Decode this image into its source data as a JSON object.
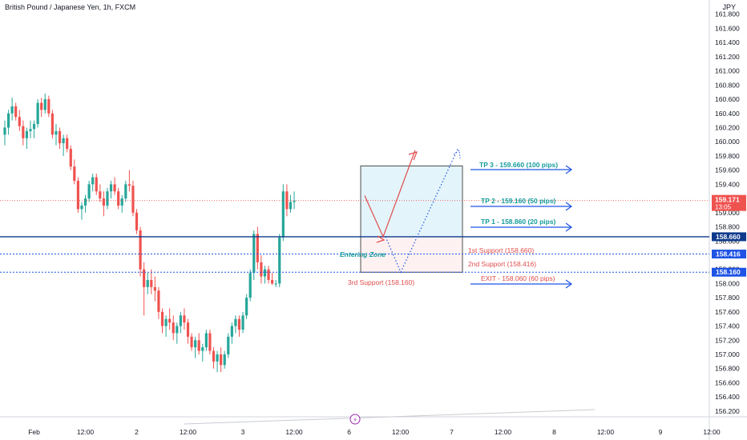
{
  "title": "British Pound / Japanese Yen, 1h, FXCM",
  "currency": "JPY",
  "colors": {
    "bull": "#26a69a",
    "bear": "#ef5350",
    "navy": "#0d3a8c",
    "blue": "#1e53e5",
    "teal": "#159b9b",
    "red": "#e04b4b",
    "zone": "#e3f4fb"
  },
  "chart_data": {
    "type": "candlestick",
    "title": "British Pound / Japanese Yen, 1h, FXCM",
    "ylabel": "JPY",
    "ylim": [
      156.12,
      162.0
    ],
    "y_ticks": [
      "161.800",
      "161.600",
      "161.400",
      "161.200",
      "161.000",
      "160.800",
      "160.600",
      "160.400",
      "160.200",
      "160.000",
      "159.800",
      "159.600",
      "159.400",
      "159.200",
      "159.000",
      "158.800",
      "158.600",
      "158.400",
      "158.200",
      "158.000",
      "157.800",
      "157.600",
      "157.400",
      "157.200",
      "157.000",
      "156.800",
      "156.600",
      "156.400",
      "156.200"
    ],
    "x_tick_labels": [
      "Feb",
      "12:00",
      "2",
      "12:00",
      "3",
      "12:00",
      "6",
      "12:00",
      "7",
      "12:00",
      "8",
      "12:00",
      "9",
      "12:00"
    ],
    "x_tick_index": [
      8,
      22,
      36,
      50,
      65,
      79,
      94,
      108,
      122,
      136,
      150,
      164,
      179,
      193
    ],
    "candles": [
      [
        160.1,
        160.3,
        159.95,
        160.2
      ],
      [
        160.2,
        160.45,
        160.1,
        160.4
      ],
      [
        160.4,
        160.62,
        160.3,
        160.5
      ],
      [
        160.5,
        160.55,
        160.3,
        160.35
      ],
      [
        160.35,
        160.45,
        160.15,
        160.22
      ],
      [
        160.22,
        160.3,
        159.95,
        160.05
      ],
      [
        160.05,
        160.2,
        159.9,
        160.15
      ],
      [
        160.15,
        160.3,
        160.05,
        160.18
      ],
      [
        160.18,
        160.3,
        160.05,
        160.25
      ],
      [
        160.25,
        160.6,
        160.2,
        160.55
      ],
      [
        160.55,
        160.62,
        160.35,
        160.45
      ],
      [
        160.45,
        160.68,
        160.4,
        160.6
      ],
      [
        160.6,
        160.65,
        160.35,
        160.4
      ],
      [
        160.4,
        160.45,
        160.05,
        160.1
      ],
      [
        160.1,
        160.25,
        159.95,
        160.15
      ],
      [
        160.15,
        160.2,
        159.9,
        159.98
      ],
      [
        159.98,
        160.1,
        159.8,
        160.05
      ],
      [
        160.05,
        160.1,
        159.85,
        159.9
      ],
      [
        159.9,
        159.95,
        159.6,
        159.65
      ],
      [
        159.65,
        159.75,
        159.4,
        159.45
      ],
      [
        159.45,
        159.5,
        159.0,
        159.05
      ],
      [
        159.05,
        159.15,
        158.9,
        159.1
      ],
      [
        159.1,
        159.25,
        159.0,
        159.2
      ],
      [
        159.2,
        159.45,
        159.15,
        159.4
      ],
      [
        159.4,
        159.55,
        159.3,
        159.5
      ],
      [
        159.5,
        159.55,
        159.25,
        159.3
      ],
      [
        159.3,
        159.4,
        159.15,
        159.2
      ],
      [
        159.2,
        159.3,
        158.95,
        159.1
      ],
      [
        159.1,
        159.35,
        159.05,
        159.3
      ],
      [
        159.3,
        159.45,
        159.2,
        159.4
      ],
      [
        159.4,
        159.5,
        159.25,
        159.3
      ],
      [
        159.3,
        159.35,
        159.05,
        159.1
      ],
      [
        159.1,
        159.25,
        159.0,
        159.2
      ],
      [
        159.2,
        159.45,
        159.15,
        159.4
      ],
      [
        159.4,
        159.6,
        159.3,
        159.38
      ],
      [
        159.38,
        159.45,
        158.95,
        159.0
      ],
      [
        159.0,
        159.05,
        158.7,
        158.75
      ],
      [
        158.75,
        158.8,
        158.1,
        158.2
      ],
      [
        158.2,
        158.3,
        157.55,
        157.95
      ],
      [
        157.95,
        158.15,
        157.85,
        158.05
      ],
      [
        158.05,
        158.2,
        157.85,
        157.95
      ],
      [
        157.95,
        158.1,
        157.75,
        157.9
      ],
      [
        157.9,
        157.95,
        157.5,
        157.6
      ],
      [
        157.6,
        157.65,
        157.3,
        157.4
      ],
      [
        157.4,
        157.55,
        157.25,
        157.5
      ],
      [
        157.5,
        157.65,
        157.35,
        157.45
      ],
      [
        157.45,
        157.55,
        157.2,
        157.3
      ],
      [
        157.3,
        157.45,
        157.15,
        157.4
      ],
      [
        157.4,
        157.6,
        157.3,
        157.55
      ],
      [
        157.55,
        157.65,
        157.35,
        157.45
      ],
      [
        157.45,
        157.5,
        157.15,
        157.25
      ],
      [
        157.25,
        157.3,
        157.05,
        157.1
      ],
      [
        157.1,
        157.25,
        156.95,
        157.2
      ],
      [
        157.2,
        157.3,
        157.0,
        157.05
      ],
      [
        157.05,
        157.15,
        156.9,
        157.1
      ],
      [
        157.1,
        157.35,
        157.05,
        157.3
      ],
      [
        157.3,
        157.35,
        157.0,
        157.05
      ],
      [
        157.05,
        157.1,
        156.8,
        156.9
      ],
      [
        156.9,
        157.05,
        156.75,
        157.0
      ],
      [
        157.0,
        157.1,
        156.75,
        156.85
      ],
      [
        156.85,
        157.05,
        156.8,
        157.0
      ],
      [
        157.0,
        157.3,
        156.95,
        157.25
      ],
      [
        157.25,
        157.45,
        157.15,
        157.4
      ],
      [
        157.4,
        157.55,
        157.3,
        157.5
      ],
      [
        157.5,
        157.55,
        157.25,
        157.35
      ],
      [
        157.35,
        157.6,
        157.3,
        157.55
      ],
      [
        157.55,
        157.85,
        157.5,
        157.8
      ],
      [
        157.8,
        158.2,
        157.75,
        158.15
      ],
      [
        158.15,
        158.75,
        158.05,
        158.7
      ],
      [
        158.7,
        158.8,
        158.2,
        158.3
      ],
      [
        158.3,
        158.4,
        158.0,
        158.1
      ],
      [
        158.1,
        158.25,
        158.0,
        158.2
      ],
      [
        158.2,
        158.25,
        158.0,
        158.05
      ],
      [
        158.05,
        158.15,
        157.98,
        158.0
      ],
      [
        158.0,
        158.05,
        157.95,
        158.0
      ],
      [
        158.0,
        158.7,
        157.95,
        158.65
      ],
      [
        158.65,
        159.4,
        158.6,
        159.3
      ],
      [
        159.3,
        159.4,
        158.95,
        159.05
      ],
      [
        159.05,
        159.25,
        159.0,
        159.15
      ],
      [
        159.15,
        159.3,
        159.05,
        159.17
      ]
    ],
    "last_price": "159.171",
    "countdown": "13:05",
    "horizontal_lines": [
      {
        "label": "158.660",
        "value": 158.66,
        "style": "solid"
      },
      {
        "label": "158.416",
        "value": 158.416,
        "style": "dotted"
      },
      {
        "label": "158.160",
        "value": 158.16,
        "style": "dotted"
      }
    ],
    "annotations": {
      "tp3": "TP 3 - 159.660 (100 pips)",
      "tp2": "TP 2 - 159.160 (50 pips)",
      "tp1": "TP 1 - 158.860 (20 pips)",
      "exit": "EXIT - 158.060 (60 pips)",
      "support1": "1st Support (158.660)",
      "support2": "2nd Support (158.416)",
      "support3": "3rd Support (158.160)",
      "entering": "Entering Zone"
    },
    "grid": true
  }
}
